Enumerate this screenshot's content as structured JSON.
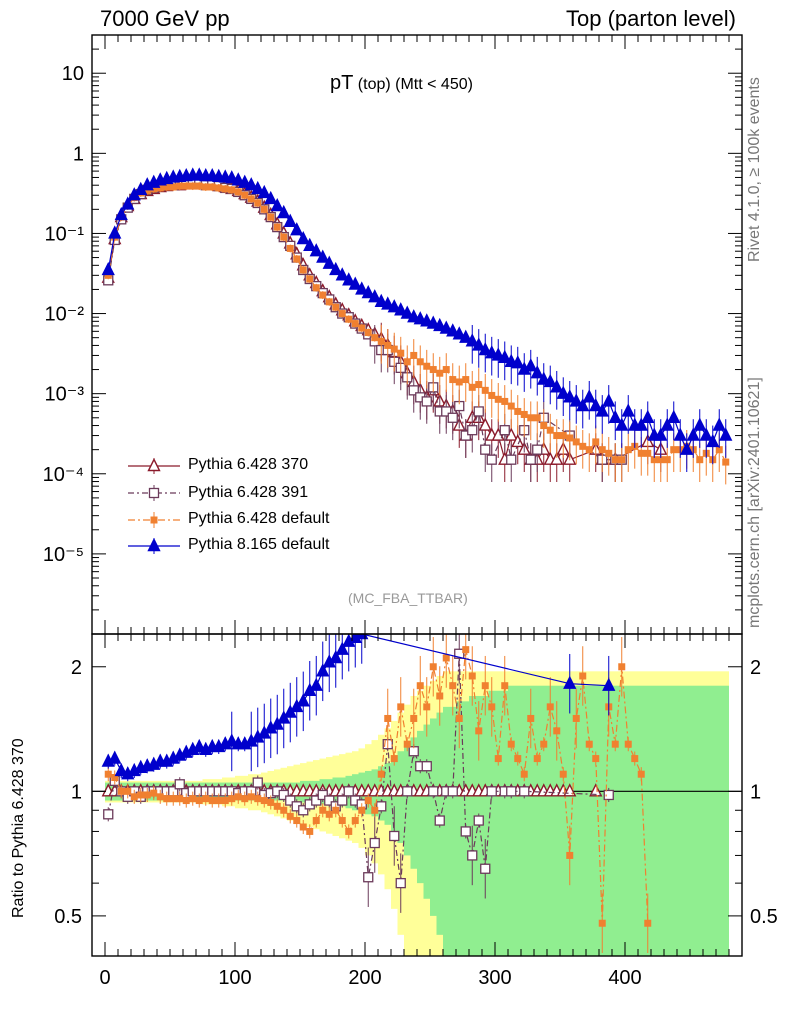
{
  "header": {
    "left": "7000 GeV pp",
    "right": "Top (parton level)"
  },
  "side_labels": {
    "rivet": "Rivet 4.1.0, ≥ 100k events",
    "mcplots": "mcplots.cern.ch [arXiv:2401.10621]"
  },
  "plot_title": {
    "main": "pT",
    "sub": "(top) (Mtt < 450)"
  },
  "analysis_tag": "(MC_FBA_TTBAR)",
  "colors": {
    "p6_370": "#8b1a2b",
    "p6_391": "#6b3a5a",
    "p6_default": "#f08030",
    "p8_default": "#0000cc",
    "band_green": "#90ee90",
    "band_yellow": "#ffff99"
  },
  "chart_data": [
    {
      "type": "scatter",
      "panel": "main",
      "yscale": "log",
      "xlim": [
        -10,
        490
      ],
      "ylim": [
        1e-06,
        30
      ],
      "xlabel": "",
      "ylabel": "",
      "y_tick_labels": [
        "10",
        "1",
        "10⁻¹",
        "10⁻²",
        "10⁻³",
        "10⁻⁴",
        "10⁻⁵"
      ],
      "y_tick_values": [
        10,
        1,
        0.1,
        0.01,
        0.001,
        0.0001,
        1e-05
      ],
      "legend": [
        "Pythia 6.428 370",
        "Pythia 6.428 391",
        "Pythia 6.428 default",
        "Pythia 8.165 default"
      ],
      "legend_position": "bottom-left",
      "x": [
        2.5,
        7.5,
        12.5,
        17.5,
        22.5,
        27.5,
        32.5,
        37.5,
        42.5,
        47.5,
        52.5,
        57.5,
        62.5,
        67.5,
        72.5,
        77.5,
        82.5,
        87.5,
        92.5,
        97.5,
        102.5,
        107.5,
        112.5,
        117.5,
        122.5,
        127.5,
        132.5,
        137.5,
        142.5,
        147.5,
        152.5,
        157.5,
        162.5,
        167.5,
        172.5,
        177.5,
        182.5,
        187.5,
        192.5,
        197.5,
        202.5,
        207.5,
        212.5,
        217.5,
        222.5,
        227.5,
        232.5,
        237.5,
        242.5,
        247.5,
        252.5,
        257.5,
        262.5,
        267.5,
        272.5,
        277.5,
        282.5,
        287.5,
        292.5,
        297.5,
        302.5,
        307.5,
        312.5,
        317.5,
        322.5,
        327.5,
        332.5,
        337.5,
        342.5,
        347.5,
        352.5,
        357.5,
        362.5,
        367.5,
        372.5,
        377.5,
        382.5,
        387.5,
        392.5,
        397.5,
        402.5,
        407.5,
        412.5,
        417.5,
        422.5,
        427.5,
        432.5,
        437.5,
        442.5,
        447.5,
        452.5,
        457.5,
        462.5,
        467.5,
        472.5,
        477.5
      ],
      "series": [
        {
          "name": "Pythia 6.428 370",
          "marker": "open-triangle",
          "values": [
            0.028,
            0.085,
            0.16,
            0.22,
            0.27,
            0.31,
            0.34,
            0.36,
            0.38,
            0.39,
            0.4,
            0.4,
            0.41,
            0.41,
            0.41,
            0.41,
            0.4,
            0.39,
            0.38,
            0.36,
            0.34,
            0.31,
            0.28,
            0.25,
            0.21,
            0.17,
            0.13,
            0.1,
            0.075,
            0.055,
            0.04,
            0.03,
            0.024,
            0.019,
            0.016,
            0.013,
            0.011,
            0.0095,
            0.008,
            0.007,
            0.0062,
            0.0055,
            0.0048,
            0.004,
            0.0033,
            0.0025,
            0.0018,
            0.0014,
            0.0011,
            0.0009,
            0.0011,
            0.0008,
            0.0007,
            0.0006,
            0.0004,
            0.0003,
            0.0005,
            0.0005,
            0.0004,
            0.0003,
            0.0003,
            0.00015,
            0.0003,
            0.00025,
            0.0002,
            0.00015,
            0.00015,
            0.0002,
            0.00015,
            0.00015,
            0.0002,
            0.00015,
            null,
            null,
            null,
            0.0002,
            0.00015,
            null,
            0.00015,
            null,
            null,
            null,
            null,
            0.00025,
            null,
            0.0002,
            null,
            null,
            null,
            null,
            null,
            null,
            null,
            null,
            null,
            null
          ]
        },
        {
          "name": "Pythia 6.428 391",
          "marker": "open-square",
          "values": [
            0.026,
            0.083,
            0.15,
            0.21,
            0.27,
            0.31,
            0.35,
            0.37,
            0.39,
            0.4,
            0.4,
            0.41,
            0.41,
            0.41,
            0.41,
            0.4,
            0.4,
            0.39,
            0.37,
            0.36,
            0.33,
            0.3,
            0.27,
            0.24,
            0.2,
            0.16,
            0.12,
            0.09,
            0.07,
            0.05,
            0.035,
            0.027,
            0.022,
            0.018,
            0.015,
            0.012,
            0.01,
            0.009,
            0.0075,
            0.0065,
            0.0055,
            0.0045,
            0.0035,
            0.0035,
            0.0025,
            0.0021,
            0.0016,
            0.0011,
            0.0009,
            0.0008,
            0.0012,
            0.0006,
            0.0006,
            0.0005,
            0.0007,
            0.0003,
            0.00035,
            0.0006,
            0.0002,
            0.00015,
            null,
            0.00035,
            0.00015,
            null,
            0.00035,
            0.00015,
            0.0002,
            0.0005,
            null,
            null,
            null,
            0.0003,
            null,
            null,
            null,
            null,
            0.00015,
            null,
            0.00015,
            0.00015,
            null,
            null,
            null,
            null,
            null,
            null,
            null,
            null,
            null,
            null,
            null,
            null,
            null,
            null,
            null,
            null
          ]
        },
        {
          "name": "Pythia 6.428 default",
          "marker": "filled-square",
          "values": [
            0.03,
            0.09,
            0.16,
            0.22,
            0.28,
            0.32,
            0.34,
            0.36,
            0.37,
            0.38,
            0.38,
            0.39,
            0.39,
            0.39,
            0.39,
            0.38,
            0.38,
            0.37,
            0.36,
            0.35,
            0.33,
            0.3,
            0.27,
            0.24,
            0.2,
            0.16,
            0.12,
            0.09,
            0.065,
            0.048,
            0.035,
            0.027,
            0.021,
            0.017,
            0.014,
            0.012,
            0.01,
            0.0085,
            0.0075,
            0.0066,
            0.0058,
            0.005,
            0.0045,
            0.004,
            0.0036,
            0.0032,
            0.0025,
            0.003,
            0.0025,
            0.0022,
            0.002,
            0.0018,
            0.002,
            0.0015,
            0.0014,
            0.0015,
            0.0012,
            0.0013,
            0.0011,
            0.00095,
            0.00085,
            0.0008,
            0.0007,
            0.0006,
            0.00055,
            0.0005,
            0.0005,
            0.0004,
            0.00035,
            0.0003,
            0.0003,
            0.00028,
            0.00025,
            0.00022,
            0.0002,
            0.00025,
            0.0002,
            0.00018,
            0.00015,
            0.00015,
            0.0002,
            0.00022,
            0.00018,
            0.00018,
            0.00015,
            0.00015,
            0.00015,
            0.0002,
            0.0002,
            0.00022,
            0.0002,
            0.00015,
            0.00018,
            0.00015,
            0.0002,
            0.00014
          ]
        },
        {
          "name": "Pythia 8.165 default",
          "marker": "filled-triangle",
          "values": [
            0.035,
            0.1,
            0.17,
            0.23,
            0.3,
            0.35,
            0.4,
            0.43,
            0.46,
            0.48,
            0.5,
            0.51,
            0.52,
            0.53,
            0.53,
            0.52,
            0.52,
            0.51,
            0.5,
            0.49,
            0.46,
            0.43,
            0.4,
            0.36,
            0.32,
            0.27,
            0.22,
            0.18,
            0.14,
            0.11,
            0.085,
            0.07,
            0.06,
            0.05,
            0.042,
            0.035,
            0.03,
            0.026,
            0.023,
            0.02,
            0.018,
            0.016,
            0.014,
            0.013,
            0.012,
            0.011,
            0.01,
            0.009,
            0.0085,
            0.008,
            0.0075,
            0.007,
            0.0065,
            0.006,
            0.0055,
            0.005,
            0.0045,
            0.004,
            0.0035,
            0.0032,
            0.003,
            0.0028,
            0.0025,
            0.0024,
            0.002,
            0.0022,
            0.0018,
            0.0015,
            0.0014,
            0.0012,
            0.001,
            0.0009,
            0.0008,
            0.0007,
            0.0009,
            0.0007,
            0.0006,
            0.0008,
            0.0005,
            0.0004,
            0.0006,
            0.0004,
            0.0004,
            0.0005,
            0.0003,
            0.0003,
            0.0004,
            0.0005,
            0.0003,
            0.0002,
            0.0003,
            0.0004,
            0.0003,
            0.00025,
            0.0004,
            0.0003
          ]
        }
      ]
    },
    {
      "type": "scatter",
      "panel": "ratio",
      "yscale": "log",
      "xlim": [
        -10,
        490
      ],
      "ylim": [
        0.4,
        2.4
      ],
      "ylabel": "Ratio to Pythia 6.428 370",
      "x_tick_labels": [
        "0",
        "100",
        "200",
        "300",
        "400"
      ],
      "x_tick_values": [
        0,
        100,
        200,
        300,
        400
      ],
      "y_tick_labels": [
        "2",
        "1",
        "0.5"
      ],
      "y_tick_values": [
        2,
        1,
        0.5
      ],
      "reference": 1,
      "band_note": "green = statistical uncertainty, yellow = total uncertainty",
      "band_green_halfwidth": [
        0.05,
        0.05,
        0.05,
        0.05,
        0.05,
        0.05,
        0.05,
        0.05,
        0.05,
        0.05,
        0.05,
        0.05,
        0.05,
        0.05,
        0.05,
        0.05,
        0.05,
        0.05,
        0.05,
        0.05,
        0.05,
        0.05,
        0.05,
        0.05,
        0.05,
        0.05,
        0.05,
        0.05,
        0.05,
        0.05,
        0.06,
        0.06,
        0.06,
        0.07,
        0.07,
        0.08,
        0.08,
        0.09,
        0.1,
        0.11,
        0.12,
        0.13,
        0.15,
        0.17,
        0.2,
        0.25,
        0.3,
        0.35,
        0.4,
        0.45,
        0.5,
        0.55,
        0.6,
        0.6,
        0.65,
        0.65,
        0.7,
        0.7,
        0.7,
        0.75,
        0.75,
        0.75,
        0.8,
        0.8,
        0.8,
        0.8,
        0.8,
        0.8,
        0.8,
        0.8,
        0.8,
        0.8,
        0.8,
        0.8,
        0.8,
        0.8,
        0.8,
        0.8,
        0.8,
        0.8,
        0.8,
        0.8,
        0.8,
        0.8,
        0.8,
        0.8,
        0.8,
        0.8,
        0.8,
        0.8,
        0.8,
        0.8,
        0.8,
        0.8,
        0.8,
        0.8
      ],
      "band_yellow_halfwidth": [
        0.06,
        0.06,
        0.06,
        0.06,
        0.06,
        0.06,
        0.06,
        0.06,
        0.06,
        0.06,
        0.06,
        0.06,
        0.06,
        0.06,
        0.06,
        0.07,
        0.07,
        0.07,
        0.08,
        0.08,
        0.09,
        0.09,
        0.1,
        0.1,
        0.11,
        0.12,
        0.13,
        0.14,
        0.15,
        0.16,
        0.17,
        0.18,
        0.19,
        0.2,
        0.21,
        0.22,
        0.23,
        0.24,
        0.25,
        0.27,
        0.3,
        0.33,
        0.37,
        0.42,
        0.48,
        0.55,
        0.62,
        0.7,
        0.75,
        0.8,
        0.85,
        0.9,
        0.95,
        0.95,
        0.95,
        0.95,
        0.95,
        0.95,
        0.95,
        0.95,
        0.95,
        0.95,
        0.95,
        0.95,
        0.95,
        0.95,
        0.95,
        0.95,
        0.95,
        0.95,
        0.95,
        0.95,
        0.95,
        0.95,
        0.95,
        0.95,
        0.95,
        0.95,
        0.95,
        0.95,
        0.95,
        0.95,
        0.95,
        0.95,
        0.95,
        0.95,
        0.95,
        0.95,
        0.95,
        0.95,
        0.95,
        0.95,
        0.95,
        0.95,
        0.95,
        0.95
      ],
      "series": [
        {
          "name": "Pythia 6.428 391",
          "values": [
            0.88,
            1.06,
            1.0,
            0.97,
            1.0,
            0.97,
            1.0,
            1.0,
            1.0,
            1.0,
            1.0,
            1.04,
            0.99,
            1.0,
            1.0,
            1.0,
            1.0,
            1.0,
            1.0,
            1.0,
            0.99,
            1.0,
            1.0,
            1.05,
            0.98,
            0.99,
            1.0,
            0.98,
            0.95,
            0.92,
            0.9,
            0.93,
            0.95,
            0.98,
            0.95,
            0.92,
            0.95,
            1.0,
            0.95,
            0.93,
            0.62,
            0.75,
            0.92,
            1.3,
            0.78,
            0.6,
            1.0,
            1.25,
            1.15,
            1.15,
            1.0,
            0.85,
            1.0,
            1.0,
            2.15,
            0.8,
            0.7,
            0.85,
            0.65,
            1.0,
            null,
            1.0,
            1.0,
            null,
            1.0,
            null,
            null,
            null,
            null,
            null,
            null,
            null,
            null,
            null,
            null,
            null,
            null,
            0.98,
            null,
            null,
            null,
            null,
            null,
            null,
            null,
            null,
            null,
            null,
            null,
            null,
            null,
            null,
            null,
            null,
            null,
            null
          ]
        },
        {
          "name": "Pythia 6.428 default",
          "values": [
            1.1,
            1.08,
            1.0,
            1.0,
            0.97,
            0.98,
            0.98,
            0.99,
            0.97,
            0.96,
            0.96,
            0.96,
            0.95,
            0.96,
            0.95,
            0.96,
            0.95,
            0.95,
            0.95,
            0.96,
            0.97,
            0.96,
            0.97,
            0.96,
            0.95,
            0.94,
            0.92,
            0.9,
            0.87,
            0.85,
            0.82,
            0.8,
            0.85,
            0.9,
            0.88,
            0.9,
            0.85,
            0.8,
            0.85,
            0.9,
            0.95,
            0.9,
            1.1,
            1.5,
            1.2,
            1.6,
            1.3,
            1.5,
            1.8,
            1.6,
            2.0,
            1.7,
            2.1,
            1.8,
            1.5,
            2.2,
            1.9,
            1.4,
            1.8,
            1.6,
            1.2,
            1.8,
            1.3,
            1.2,
            1.1,
            1.5,
            1.2,
            1.3,
            1.6,
            1.4,
            1.1,
            0.7,
            1.5,
            1.9,
            1.3,
            1.2,
            0.48,
            1.6,
            1.3,
            2.0,
            1.3,
            1.2,
            1.1,
            0.48,
            null,
            null,
            null,
            null,
            null,
            null,
            null,
            null,
            null,
            null,
            null,
            null
          ]
        },
        {
          "name": "Pythia 8.165 default",
          "values": [
            1.18,
            1.2,
            1.12,
            1.1,
            1.12,
            1.14,
            1.15,
            1.16,
            1.18,
            1.18,
            1.2,
            1.22,
            1.24,
            1.26,
            1.28,
            1.26,
            1.28,
            1.28,
            1.3,
            1.32,
            1.3,
            1.3,
            1.32,
            1.35,
            1.38,
            1.42,
            1.45,
            1.5,
            1.55,
            1.6,
            1.65,
            1.75,
            1.8,
            1.95,
            2.05,
            2.1,
            2.2,
            2.3,
            2.35,
            2.4,
            null,
            null,
            null,
            null,
            null,
            null,
            null,
            null,
            null,
            null,
            null,
            null,
            null,
            null,
            null,
            null,
            null,
            null,
            null,
            null,
            null,
            null,
            null,
            null,
            null,
            null,
            null,
            null,
            null,
            null,
            null,
            1.82,
            null,
            null,
            null,
            null,
            null,
            1.8,
            null,
            null,
            null,
            null,
            null,
            null,
            null,
            null,
            null,
            null,
            null,
            null,
            null,
            null,
            null,
            null,
            null,
            null
          ]
        }
      ]
    }
  ]
}
